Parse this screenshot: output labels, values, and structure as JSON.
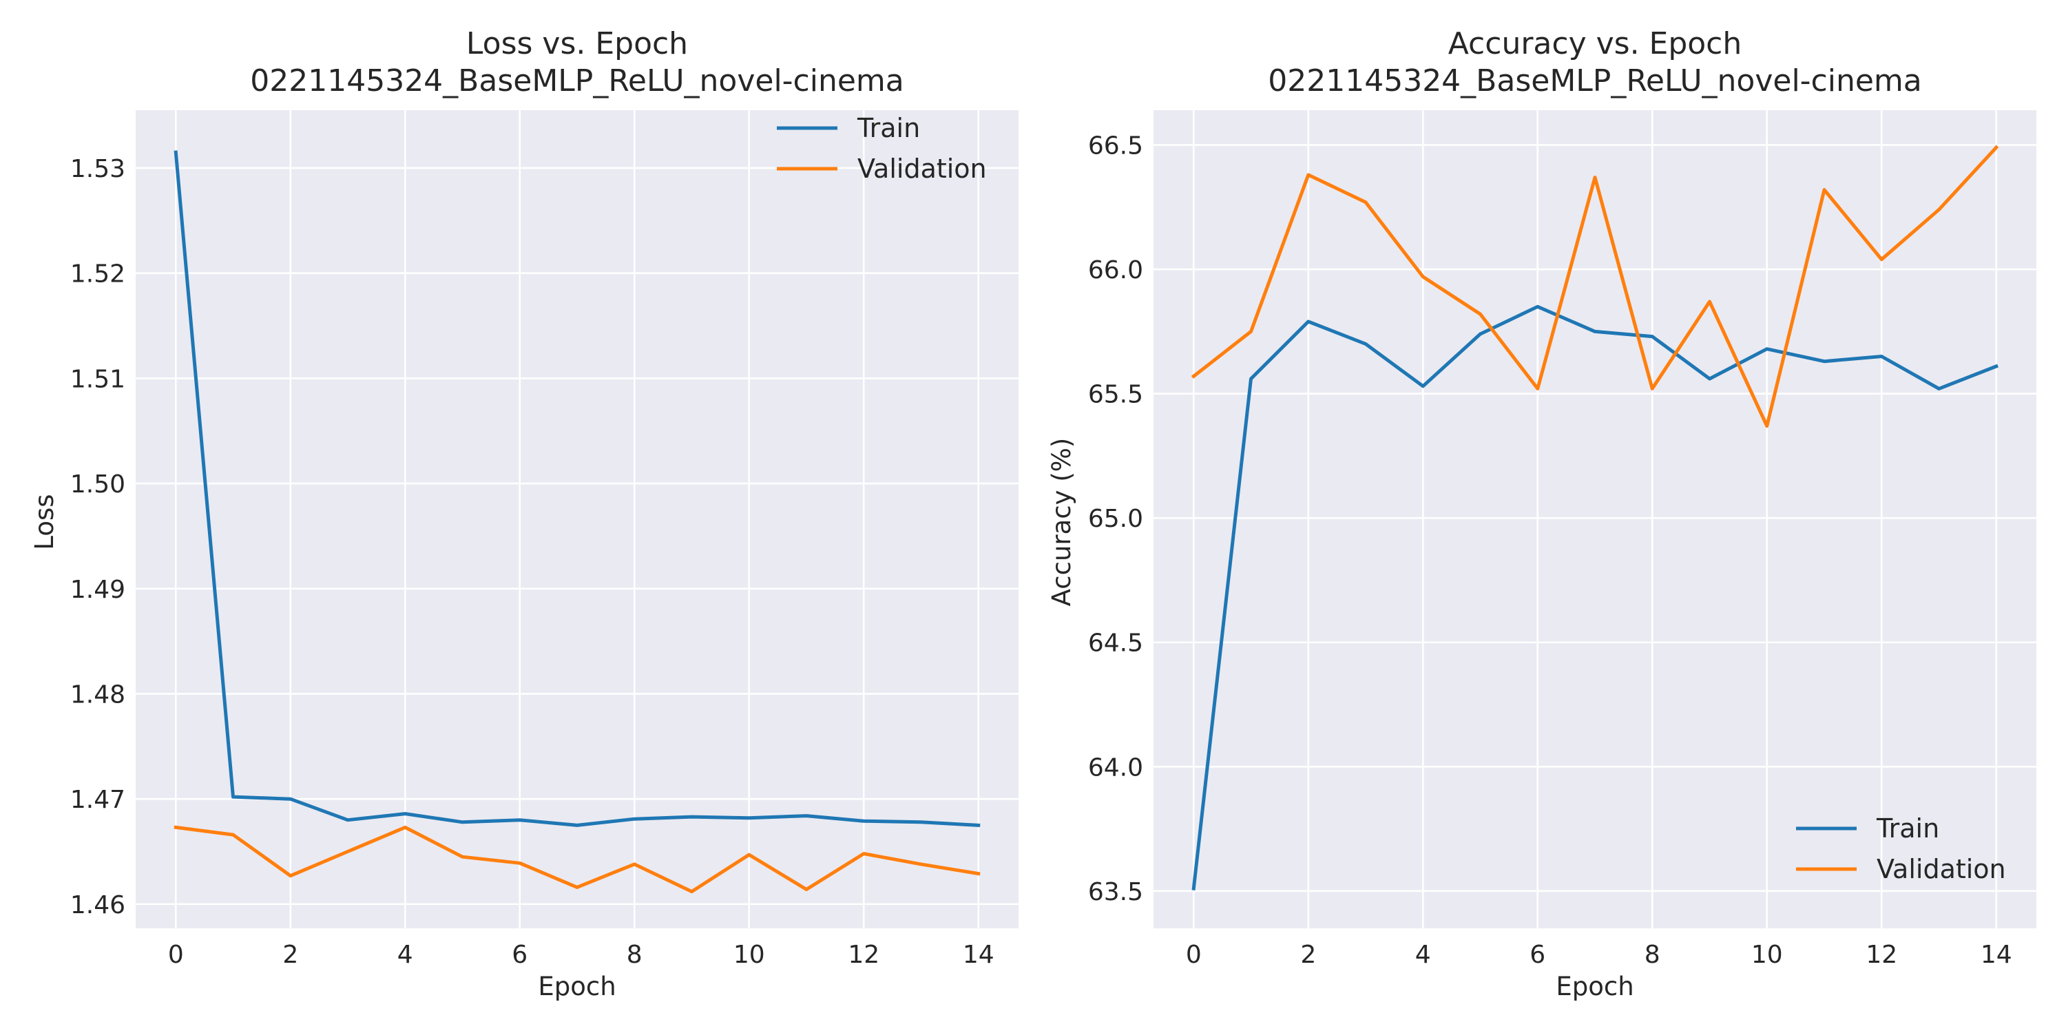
{
  "style": {
    "background": "#ffffff",
    "axes_face": "#eaeaf2",
    "grid": "#ffffff",
    "text": "#262626",
    "train_color": "#1f77b4",
    "validation_color": "#ff7f0e"
  },
  "chart_data": [
    {
      "type": "line",
      "title": "Loss vs. Epoch",
      "subtitle": "0221145324_BaseMLP_ReLU_novel-cinema",
      "xlabel": "Epoch",
      "ylabel": "Loss",
      "xlim": [
        -0.7,
        14.7
      ],
      "ylim": [
        1.4577,
        1.5355
      ],
      "xticks": [
        0,
        2,
        4,
        6,
        8,
        10,
        12,
        14
      ],
      "xtick_labels": [
        "0",
        "2",
        "4",
        "6",
        "8",
        "10",
        "12",
        "14"
      ],
      "yticks": [
        1.46,
        1.47,
        1.48,
        1.49,
        1.5,
        1.51,
        1.52,
        1.53
      ],
      "ytick_labels": [
        "1.46",
        "1.47",
        "1.48",
        "1.49",
        "1.50",
        "1.51",
        "1.52",
        "1.53"
      ],
      "grid": true,
      "legend": "upper right",
      "x": [
        0,
        1,
        2,
        3,
        4,
        5,
        6,
        7,
        8,
        9,
        10,
        11,
        12,
        13,
        14
      ],
      "series": [
        {
          "name": "Train",
          "color": "#1f77b4",
          "values": [
            1.5315,
            1.4702,
            1.47,
            1.468,
            1.4686,
            1.4678,
            1.468,
            1.4675,
            1.4681,
            1.4683,
            1.4682,
            1.4684,
            1.4679,
            1.4678,
            1.4675
          ]
        },
        {
          "name": "Validation",
          "color": "#ff7f0e",
          "values": [
            1.4673,
            1.4666,
            1.4627,
            1.465,
            1.4673,
            1.4645,
            1.4639,
            1.4616,
            1.4638,
            1.4612,
            1.4647,
            1.4614,
            1.4648,
            1.4638,
            1.4629
          ]
        }
      ]
    },
    {
      "type": "line",
      "title": "Accuracy vs. Epoch",
      "subtitle": "0221145324_BaseMLP_ReLU_novel-cinema",
      "xlabel": "Epoch",
      "ylabel": "Accuracy (%)",
      "xlim": [
        -0.7,
        14.7
      ],
      "ylim": [
        63.35,
        66.64
      ],
      "xticks": [
        0,
        2,
        4,
        6,
        8,
        10,
        12,
        14
      ],
      "xtick_labels": [
        "0",
        "2",
        "4",
        "6",
        "8",
        "10",
        "12",
        "14"
      ],
      "yticks": [
        63.5,
        64.0,
        64.5,
        65.0,
        65.5,
        66.0,
        66.5
      ],
      "ytick_labels": [
        "63.5",
        "64.0",
        "64.5",
        "65.0",
        "65.5",
        "66.0",
        "66.5"
      ],
      "grid": true,
      "legend": "lower right",
      "x": [
        0,
        1,
        2,
        3,
        4,
        5,
        6,
        7,
        8,
        9,
        10,
        11,
        12,
        13,
        14
      ],
      "series": [
        {
          "name": "Train",
          "color": "#1f77b4",
          "values": [
            63.51,
            65.56,
            65.79,
            65.7,
            65.53,
            65.74,
            65.85,
            65.75,
            65.73,
            65.56,
            65.68,
            65.63,
            65.65,
            65.52,
            65.61
          ]
        },
        {
          "name": "Validation",
          "color": "#ff7f0e",
          "values": [
            65.57,
            65.75,
            66.38,
            66.27,
            65.97,
            65.82,
            65.52,
            66.37,
            65.52,
            65.87,
            65.37,
            66.32,
            66.04,
            66.24,
            66.49
          ]
        }
      ]
    }
  ]
}
